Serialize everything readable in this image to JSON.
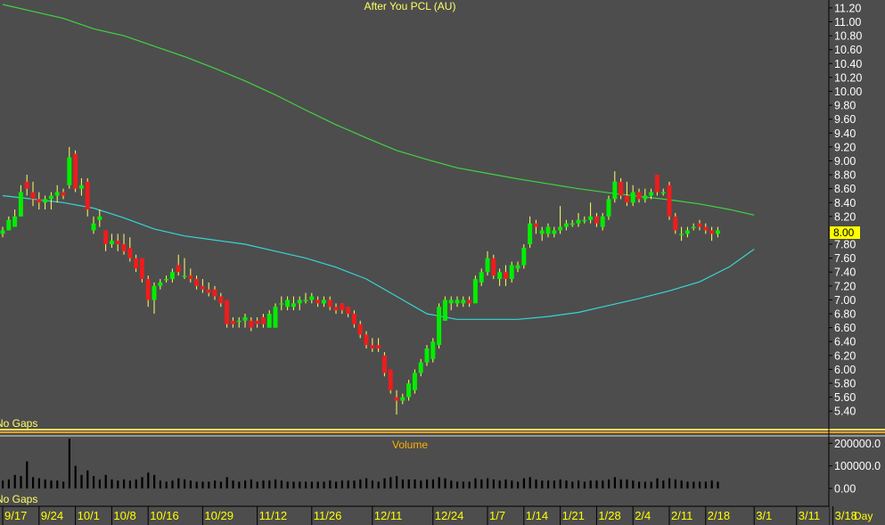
{
  "title": "After You PCL (AU)",
  "volume_title": "Volume",
  "gap_label": "No Gaps",
  "period_label": "Day",
  "last_price_label": "8.00",
  "colors": {
    "background": "#4d4d4d",
    "up": "#00ee00",
    "down": "#ee1c1c",
    "wick": "#ffff66",
    "ma_long": "#3fd43f",
    "ma_short": "#36d6d6",
    "title": "#ffff66",
    "volume_title": "#ffb000",
    "axis_text": "#ffffff",
    "date_text": "#ffff00",
    "price_box": "#ffff00",
    "separator_orange": "#f0a020",
    "separator_yellow": "#ffe060"
  },
  "chart_data": {
    "type": "candlestick",
    "price_axis": {
      "ticks": [
        "11.20",
        "11.00",
        "10.80",
        "10.60",
        "10.40",
        "10.20",
        "10.00",
        "9.80",
        "9.60",
        "9.40",
        "9.20",
        "9.00",
        "8.80",
        "8.60",
        "8.40",
        "8.20",
        "8.00",
        "7.80",
        "7.60",
        "7.40",
        "7.20",
        "7.00",
        "6.80",
        "6.60",
        "6.40",
        "6.20",
        "6.00",
        "5.80",
        "5.60",
        "5.40"
      ],
      "range": [
        5.3,
        11.25
      ]
    },
    "volume_axis": {
      "ticks": [
        "200000.0",
        "100000.0",
        "0.00"
      ],
      "range": [
        0,
        280000
      ]
    },
    "date_labels": [
      "9/17",
      "9/24",
      "10/1",
      "10/8",
      "10/16",
      "10/29",
      "11/12",
      "11/26",
      "12/11",
      "12/24",
      "1/7",
      "1/14",
      "1/21",
      "1/28",
      "2/4",
      "2/11",
      "2/18",
      "3/1",
      "3/11",
      "3/18"
    ],
    "date_label_index": [
      0,
      6,
      12,
      18,
      24,
      33,
      42,
      51,
      61,
      71,
      80,
      86,
      92,
      98,
      104,
      110,
      116,
      124,
      131,
      137
    ],
    "candles": [
      {
        "o": 7.95,
        "h": 8.05,
        "l": 7.9,
        "c": 8.0,
        "v": 35000
      },
      {
        "o": 8.0,
        "h": 8.2,
        "l": 8.0,
        "c": 8.15,
        "v": 40000
      },
      {
        "o": 8.05,
        "h": 8.3,
        "l": 8.05,
        "c": 8.2,
        "v": 60000
      },
      {
        "o": 8.2,
        "h": 8.65,
        "l": 8.2,
        "c": 8.55,
        "v": 55000
      },
      {
        "o": 8.7,
        "h": 8.8,
        "l": 8.5,
        "c": 8.6,
        "v": 120000
      },
      {
        "o": 8.55,
        "h": 8.7,
        "l": 8.35,
        "c": 8.45,
        "v": 50000
      },
      {
        "o": 8.45,
        "h": 8.55,
        "l": 8.3,
        "c": 8.4,
        "v": 45000
      },
      {
        "o": 8.4,
        "h": 8.5,
        "l": 8.3,
        "c": 8.45,
        "v": 40000
      },
      {
        "o": 8.45,
        "h": 8.55,
        "l": 8.3,
        "c": 8.5,
        "v": 35000
      },
      {
        "o": 8.5,
        "h": 8.65,
        "l": 8.4,
        "c": 8.55,
        "v": 35000
      },
      {
        "o": 8.55,
        "h": 8.6,
        "l": 8.45,
        "c": 8.5,
        "v": 30000
      },
      {
        "o": 8.65,
        "h": 9.2,
        "l": 8.6,
        "c": 9.05,
        "v": 220000
      },
      {
        "o": 9.1,
        "h": 9.15,
        "l": 8.55,
        "c": 8.6,
        "v": 100000
      },
      {
        "o": 8.6,
        "h": 8.75,
        "l": 8.5,
        "c": 8.65,
        "v": 60000
      },
      {
        "o": 8.7,
        "h": 8.75,
        "l": 8.2,
        "c": 8.3,
        "v": 80000
      },
      {
        "o": 8.0,
        "h": 8.2,
        "l": 7.95,
        "c": 8.1,
        "v": 55000
      },
      {
        "o": 8.15,
        "h": 8.3,
        "l": 8.05,
        "c": 8.2,
        "v": 40000
      },
      {
        "o": 8.0,
        "h": 8.0,
        "l": 7.7,
        "c": 7.8,
        "v": 60000
      },
      {
        "o": 7.8,
        "h": 7.95,
        "l": 7.75,
        "c": 7.85,
        "v": 40000
      },
      {
        "o": 7.85,
        "h": 7.95,
        "l": 7.7,
        "c": 7.8,
        "v": 35000
      },
      {
        "o": 7.8,
        "h": 7.95,
        "l": 7.65,
        "c": 7.7,
        "v": 40000
      },
      {
        "o": 7.75,
        "h": 7.9,
        "l": 7.55,
        "c": 7.6,
        "v": 35000
      },
      {
        "o": 7.6,
        "h": 7.65,
        "l": 7.4,
        "c": 7.45,
        "v": 40000
      },
      {
        "o": 7.6,
        "h": 7.6,
        "l": 7.25,
        "c": 7.3,
        "v": 50000
      },
      {
        "o": 7.3,
        "h": 7.35,
        "l": 6.9,
        "c": 7.0,
        "v": 70000
      },
      {
        "o": 7.0,
        "h": 7.25,
        "l": 6.8,
        "c": 7.2,
        "v": 60000
      },
      {
        "o": 7.2,
        "h": 7.3,
        "l": 7.15,
        "c": 7.25,
        "v": 35000
      },
      {
        "o": 7.3,
        "h": 7.35,
        "l": 7.25,
        "c": 7.3,
        "v": 30000
      },
      {
        "o": 7.3,
        "h": 7.45,
        "l": 7.25,
        "c": 7.4,
        "v": 35000
      },
      {
        "o": 7.5,
        "h": 7.65,
        "l": 7.35,
        "c": 7.4,
        "v": 45000
      },
      {
        "o": 7.35,
        "h": 7.6,
        "l": 7.3,
        "c": 7.35,
        "v": 40000
      },
      {
        "o": 7.35,
        "h": 7.45,
        "l": 7.25,
        "c": 7.3,
        "v": 35000
      },
      {
        "o": 7.3,
        "h": 7.35,
        "l": 7.15,
        "c": 7.2,
        "v": 30000
      },
      {
        "o": 7.2,
        "h": 7.3,
        "l": 7.1,
        "c": 7.15,
        "v": 30000
      },
      {
        "o": 7.15,
        "h": 7.25,
        "l": 7.05,
        "c": 7.1,
        "v": 30000
      },
      {
        "o": 7.15,
        "h": 7.2,
        "l": 7.0,
        "c": 7.05,
        "v": 35000
      },
      {
        "o": 7.05,
        "h": 7.1,
        "l": 6.9,
        "c": 6.95,
        "v": 30000
      },
      {
        "o": 7.0,
        "h": 7.0,
        "l": 6.6,
        "c": 6.65,
        "v": 50000
      },
      {
        "o": 6.7,
        "h": 6.75,
        "l": 6.6,
        "c": 6.65,
        "v": 35000
      },
      {
        "o": 6.7,
        "h": 6.75,
        "l": 6.6,
        "c": 6.7,
        "v": 30000
      },
      {
        "o": 6.7,
        "h": 6.8,
        "l": 6.6,
        "c": 6.75,
        "v": 35000
      },
      {
        "o": 6.7,
        "h": 6.75,
        "l": 6.55,
        "c": 6.6,
        "v": 40000
      },
      {
        "o": 6.7,
        "h": 6.75,
        "l": 6.6,
        "c": 6.65,
        "v": 30000
      },
      {
        "o": 6.75,
        "h": 6.8,
        "l": 6.6,
        "c": 6.65,
        "v": 35000
      },
      {
        "o": 6.6,
        "h": 6.85,
        "l": 6.6,
        "c": 6.8,
        "v": 35000
      },
      {
        "o": 6.6,
        "h": 6.95,
        "l": 6.6,
        "c": 6.9,
        "v": 40000
      },
      {
        "o": 6.95,
        "h": 7.05,
        "l": 6.85,
        "c": 6.95,
        "v": 35000
      },
      {
        "o": 6.9,
        "h": 7.05,
        "l": 6.85,
        "c": 7.0,
        "v": 30000
      },
      {
        "o": 6.9,
        "h": 7.05,
        "l": 6.85,
        "c": 6.95,
        "v": 30000
      },
      {
        "o": 6.95,
        "h": 7.05,
        "l": 6.85,
        "c": 7.0,
        "v": 30000
      },
      {
        "o": 7.0,
        "h": 7.1,
        "l": 6.95,
        "c": 7.0,
        "v": 30000
      },
      {
        "o": 7.0,
        "h": 7.1,
        "l": 6.95,
        "c": 7.05,
        "v": 30000
      },
      {
        "o": 7.0,
        "h": 7.05,
        "l": 6.9,
        "c": 6.95,
        "v": 30000
      },
      {
        "o": 6.95,
        "h": 7.05,
        "l": 6.9,
        "c": 7.0,
        "v": 30000
      },
      {
        "o": 7.0,
        "h": 7.05,
        "l": 6.85,
        "c": 6.9,
        "v": 35000
      },
      {
        "o": 6.9,
        "h": 6.95,
        "l": 6.8,
        "c": 6.85,
        "v": 30000
      },
      {
        "o": 6.95,
        "h": 6.95,
        "l": 6.8,
        "c": 6.85,
        "v": 35000
      },
      {
        "o": 6.9,
        "h": 6.9,
        "l": 6.75,
        "c": 6.8,
        "v": 35000
      },
      {
        "o": 6.8,
        "h": 6.85,
        "l": 6.6,
        "c": 6.65,
        "v": 35000
      },
      {
        "o": 6.65,
        "h": 6.7,
        "l": 6.45,
        "c": 6.5,
        "v": 40000
      },
      {
        "o": 6.5,
        "h": 6.55,
        "l": 6.3,
        "c": 6.35,
        "v": 45000
      },
      {
        "o": 6.35,
        "h": 6.45,
        "l": 6.25,
        "c": 6.3,
        "v": 35000
      },
      {
        "o": 6.35,
        "h": 6.45,
        "l": 6.25,
        "c": 6.3,
        "v": 30000
      },
      {
        "o": 6.2,
        "h": 6.25,
        "l": 5.9,
        "c": 5.95,
        "v": 45000
      },
      {
        "o": 6.0,
        "h": 6.0,
        "l": 5.65,
        "c": 5.7,
        "v": 50000
      },
      {
        "o": 5.6,
        "h": 5.7,
        "l": 5.35,
        "c": 5.55,
        "v": 55000
      },
      {
        "o": 5.55,
        "h": 5.65,
        "l": 5.5,
        "c": 5.6,
        "v": 40000
      },
      {
        "o": 5.6,
        "h": 5.85,
        "l": 5.55,
        "c": 5.8,
        "v": 40000
      },
      {
        "o": 5.7,
        "h": 6.0,
        "l": 5.65,
        "c": 5.95,
        "v": 40000
      },
      {
        "o": 5.95,
        "h": 6.15,
        "l": 5.9,
        "c": 6.1,
        "v": 35000
      },
      {
        "o": 6.1,
        "h": 6.35,
        "l": 6.05,
        "c": 6.3,
        "v": 40000
      },
      {
        "o": 6.15,
        "h": 6.45,
        "l": 6.1,
        "c": 6.4,
        "v": 40000
      },
      {
        "o": 6.35,
        "h": 6.95,
        "l": 6.3,
        "c": 6.9,
        "v": 50000
      },
      {
        "o": 6.7,
        "h": 7.05,
        "l": 6.7,
        "c": 7.0,
        "v": 45000
      },
      {
        "o": 6.95,
        "h": 7.05,
        "l": 6.85,
        "c": 7.0,
        "v": 35000
      },
      {
        "o": 6.95,
        "h": 7.05,
        "l": 6.9,
        "c": 7.0,
        "v": 30000
      },
      {
        "o": 6.95,
        "h": 7.05,
        "l": 6.9,
        "c": 7.0,
        "v": 30000
      },
      {
        "o": 7.0,
        "h": 7.05,
        "l": 6.9,
        "c": 6.95,
        "v": 30000
      },
      {
        "o": 6.95,
        "h": 7.35,
        "l": 6.95,
        "c": 7.3,
        "v": 45000
      },
      {
        "o": 7.25,
        "h": 7.45,
        "l": 7.2,
        "c": 7.4,
        "v": 40000
      },
      {
        "o": 7.4,
        "h": 7.7,
        "l": 7.35,
        "c": 7.6,
        "v": 45000
      },
      {
        "o": 7.6,
        "h": 7.65,
        "l": 7.3,
        "c": 7.35,
        "v": 40000
      },
      {
        "o": 7.3,
        "h": 7.45,
        "l": 7.2,
        "c": 7.4,
        "v": 35000
      },
      {
        "o": 7.4,
        "h": 7.5,
        "l": 7.2,
        "c": 7.3,
        "v": 40000
      },
      {
        "o": 7.3,
        "h": 7.55,
        "l": 7.25,
        "c": 7.5,
        "v": 35000
      },
      {
        "o": 7.45,
        "h": 7.55,
        "l": 7.4,
        "c": 7.5,
        "v": 30000
      },
      {
        "o": 7.5,
        "h": 7.8,
        "l": 7.45,
        "c": 7.75,
        "v": 45000
      },
      {
        "o": 7.8,
        "h": 8.2,
        "l": 7.75,
        "c": 8.1,
        "v": 50000
      },
      {
        "o": 8.1,
        "h": 8.15,
        "l": 7.95,
        "c": 8.05,
        "v": 40000
      },
      {
        "o": 7.95,
        "h": 8.05,
        "l": 7.85,
        "c": 8.0,
        "v": 35000
      },
      {
        "o": 7.95,
        "h": 8.1,
        "l": 7.9,
        "c": 8.05,
        "v": 35000
      },
      {
        "o": 7.95,
        "h": 8.05,
        "l": 7.9,
        "c": 8.0,
        "v": 35000
      },
      {
        "o": 8.0,
        "h": 8.35,
        "l": 7.95,
        "c": 8.05,
        "v": 40000
      },
      {
        "o": 8.05,
        "h": 8.15,
        "l": 8.0,
        "c": 8.1,
        "v": 35000
      },
      {
        "o": 8.1,
        "h": 8.15,
        "l": 8.05,
        "c": 8.1,
        "v": 30000
      },
      {
        "o": 8.1,
        "h": 8.25,
        "l": 8.05,
        "c": 8.15,
        "v": 35000
      },
      {
        "o": 8.15,
        "h": 8.2,
        "l": 8.1,
        "c": 8.15,
        "v": 30000
      },
      {
        "o": 8.15,
        "h": 8.4,
        "l": 8.1,
        "c": 8.2,
        "v": 35000
      },
      {
        "o": 8.2,
        "h": 8.25,
        "l": 8.05,
        "c": 8.1,
        "v": 35000
      },
      {
        "o": 8.05,
        "h": 8.25,
        "l": 8.0,
        "c": 8.2,
        "v": 35000
      },
      {
        "o": 8.2,
        "h": 8.5,
        "l": 8.15,
        "c": 8.45,
        "v": 40000
      },
      {
        "o": 8.45,
        "h": 8.85,
        "l": 8.4,
        "c": 8.7,
        "v": 50000
      },
      {
        "o": 8.7,
        "h": 8.75,
        "l": 8.45,
        "c": 8.5,
        "v": 40000
      },
      {
        "o": 8.5,
        "h": 8.7,
        "l": 8.35,
        "c": 8.4,
        "v": 40000
      },
      {
        "o": 8.4,
        "h": 8.65,
        "l": 8.35,
        "c": 8.55,
        "v": 35000
      },
      {
        "o": 8.55,
        "h": 8.6,
        "l": 8.4,
        "c": 8.45,
        "v": 30000
      },
      {
        "o": 8.45,
        "h": 8.6,
        "l": 8.4,
        "c": 8.5,
        "v": 30000
      },
      {
        "o": 8.5,
        "h": 8.6,
        "l": 8.45,
        "c": 8.55,
        "v": 30000
      },
      {
        "o": 8.8,
        "h": 8.8,
        "l": 8.5,
        "c": 8.55,
        "v": 45000
      },
      {
        "o": 8.55,
        "h": 8.6,
        "l": 8.5,
        "c": 8.55,
        "v": 35000
      },
      {
        "o": 8.65,
        "h": 8.7,
        "l": 8.15,
        "c": 8.2,
        "v": 45000
      },
      {
        "o": 8.2,
        "h": 8.25,
        "l": 7.95,
        "c": 8.0,
        "v": 40000
      },
      {
        "o": 7.95,
        "h": 8.05,
        "l": 7.85,
        "c": 7.95,
        "v": 35000
      },
      {
        "o": 7.95,
        "h": 8.05,
        "l": 7.9,
        "c": 8.0,
        "v": 30000
      },
      {
        "o": 8.05,
        "h": 8.1,
        "l": 8.0,
        "c": 8.05,
        "v": 30000
      },
      {
        "o": 8.1,
        "h": 8.15,
        "l": 8.0,
        "c": 8.05,
        "v": 30000
      },
      {
        "o": 8.05,
        "h": 8.1,
        "l": 7.95,
        "c": 8.0,
        "v": 30000
      },
      {
        "o": 8.0,
        "h": 8.05,
        "l": 7.85,
        "c": 7.95,
        "v": 35000
      },
      {
        "o": 7.95,
        "h": 8.05,
        "l": 7.9,
        "c": 8.0,
        "v": 30000
      }
    ],
    "moving_averages": [
      {
        "x": [
          0,
          5,
          10,
          15,
          20,
          25,
          30,
          35,
          40,
          45,
          50,
          55,
          60,
          65,
          70,
          75,
          80,
          85,
          90,
          95,
          100,
          105,
          110,
          115,
          120,
          124
        ],
        "y": [
          11.25,
          11.15,
          11.05,
          10.9,
          10.8,
          10.65,
          10.5,
          10.33,
          10.15,
          9.95,
          9.73,
          9.52,
          9.33,
          9.15,
          9.02,
          8.9,
          8.82,
          8.74,
          8.67,
          8.6,
          8.54,
          8.49,
          8.44,
          8.38,
          8.3,
          8.22
        ]
      },
      {
        "x": [
          0,
          5,
          10,
          15,
          20,
          25,
          30,
          35,
          40,
          45,
          50,
          55,
          60,
          65,
          70,
          75,
          80,
          85,
          90,
          95,
          100,
          105,
          110,
          115,
          120,
          124
        ],
        "y": [
          8.5,
          8.45,
          8.4,
          8.32,
          8.18,
          8.02,
          7.92,
          7.86,
          7.8,
          7.7,
          7.6,
          7.47,
          7.3,
          7.05,
          6.8,
          6.72,
          6.72,
          6.72,
          6.76,
          6.82,
          6.92,
          7.02,
          7.13,
          7.26,
          7.48,
          7.73
        ]
      }
    ]
  }
}
